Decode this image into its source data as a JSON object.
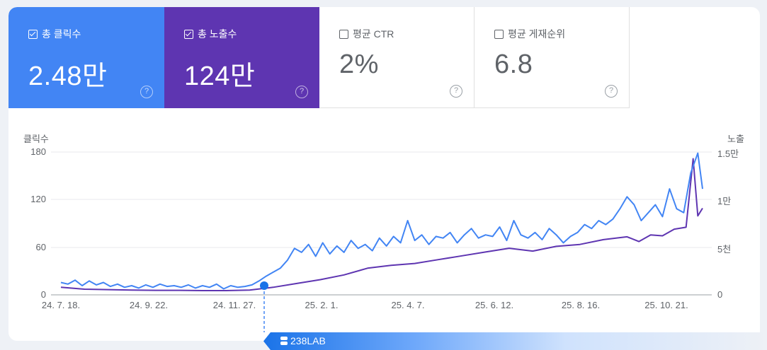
{
  "tiles": [
    {
      "label": "총 클릭수",
      "value": "2.48만",
      "checked": true,
      "help": "?"
    },
    {
      "label": "총 노출수",
      "value": "124만",
      "checked": true,
      "help": "?"
    },
    {
      "label": "평균 CTR",
      "value": "2%",
      "checked": false,
      "help": "?"
    },
    {
      "label": "평균 게재순위",
      "value": "6.8",
      "checked": false,
      "help": "?"
    }
  ],
  "colors": {
    "clicks": "#4285f4",
    "impressions": "#5e35b1",
    "background": "#eef1f6"
  },
  "badge": {
    "label": "238LAB"
  },
  "chart_data": {
    "type": "line",
    "title": "",
    "left_axis": {
      "label": "클릭수",
      "ticks": [
        "180",
        "120",
        "60",
        "0"
      ],
      "range": [
        0,
        180
      ]
    },
    "right_axis": {
      "label": "노출",
      "ticks": [
        "1.5만",
        "1만",
        "5천",
        "0"
      ],
      "range": [
        0,
        15000
      ]
    },
    "x_ticks": [
      "24. 7. 18.",
      "24. 9. 22.",
      "24. 11. 27.",
      "25. 2. 1.",
      "25. 4. 7.",
      "25. 6. 12.",
      "25. 8. 16.",
      "25. 10. 21."
    ],
    "grid": true,
    "legend": "tiles",
    "annotation": {
      "type": "marker",
      "position_label": "between 24. 11. 27. and 25. 2. 1.",
      "description": "blue dot with dashed vertical line"
    },
    "series": [
      {
        "name": "클릭수",
        "axis": "left",
        "color": "#4285f4",
        "approx_values_by_tick": [
          12,
          8,
          6,
          40,
          60,
          70,
          80,
          110
        ],
        "points": [
          [
            0,
            12
          ],
          [
            3,
            10
          ],
          [
            6,
            15
          ],
          [
            9,
            8
          ],
          [
            12,
            14
          ],
          [
            15,
            9
          ],
          [
            18,
            12
          ],
          [
            21,
            7
          ],
          [
            24,
            10
          ],
          [
            27,
            6
          ],
          [
            30,
            8
          ],
          [
            33,
            5
          ],
          [
            36,
            9
          ],
          [
            39,
            6
          ],
          [
            42,
            10
          ],
          [
            45,
            7
          ],
          [
            48,
            8
          ],
          [
            51,
            6
          ],
          [
            54,
            9
          ],
          [
            57,
            5
          ],
          [
            60,
            8
          ],
          [
            63,
            6
          ],
          [
            66,
            10
          ],
          [
            69,
            4
          ],
          [
            72,
            8
          ],
          [
            75,
            6
          ],
          [
            78,
            7
          ],
          [
            81,
            9
          ],
          [
            84,
            14
          ],
          [
            87,
            20
          ],
          [
            90,
            25
          ],
          [
            93,
            30
          ],
          [
            96,
            40
          ],
          [
            99,
            55
          ],
          [
            102,
            50
          ],
          [
            105,
            60
          ],
          [
            108,
            45
          ],
          [
            111,
            62
          ],
          [
            114,
            48
          ],
          [
            117,
            58
          ],
          [
            120,
            50
          ],
          [
            123,
            65
          ],
          [
            126,
            55
          ],
          [
            129,
            60
          ],
          [
            132,
            52
          ],
          [
            135,
            68
          ],
          [
            138,
            58
          ],
          [
            141,
            70
          ],
          [
            144,
            62
          ],
          [
            147,
            90
          ],
          [
            150,
            65
          ],
          [
            153,
            72
          ],
          [
            156,
            60
          ],
          [
            159,
            70
          ],
          [
            162,
            68
          ],
          [
            165,
            75
          ],
          [
            168,
            62
          ],
          [
            171,
            72
          ],
          [
            174,
            80
          ],
          [
            177,
            68
          ],
          [
            180,
            72
          ],
          [
            183,
            70
          ],
          [
            186,
            82
          ],
          [
            189,
            65
          ],
          [
            192,
            90
          ],
          [
            195,
            72
          ],
          [
            198,
            68
          ],
          [
            201,
            75
          ],
          [
            204,
            66
          ],
          [
            207,
            80
          ],
          [
            210,
            72
          ],
          [
            213,
            62
          ],
          [
            216,
            70
          ],
          [
            219,
            75
          ],
          [
            222,
            85
          ],
          [
            225,
            80
          ],
          [
            228,
            90
          ],
          [
            231,
            85
          ],
          [
            234,
            92
          ],
          [
            237,
            105
          ],
          [
            240,
            120
          ],
          [
            243,
            110
          ],
          [
            246,
            90
          ],
          [
            249,
            100
          ],
          [
            252,
            110
          ],
          [
            255,
            95
          ],
          [
            258,
            130
          ],
          [
            261,
            105
          ],
          [
            264,
            100
          ],
          [
            267,
            150
          ],
          [
            270,
            175
          ],
          [
            272,
            130
          ]
        ]
      },
      {
        "name": "노출",
        "axis": "right",
        "color": "#5e35b1",
        "approx_values_by_tick": [
          600,
          300,
          200,
          1100,
          2700,
          4400,
          5600,
          7500
        ],
        "points": [
          [
            0,
            500
          ],
          [
            10,
            300
          ],
          [
            20,
            250
          ],
          [
            30,
            200
          ],
          [
            40,
            180
          ],
          [
            50,
            180
          ],
          [
            60,
            150
          ],
          [
            70,
            150
          ],
          [
            80,
            200
          ],
          [
            90,
            500
          ],
          [
            100,
            900
          ],
          [
            110,
            1300
          ],
          [
            120,
            1800
          ],
          [
            130,
            2500
          ],
          [
            140,
            2800
          ],
          [
            150,
            3000
          ],
          [
            160,
            3400
          ],
          [
            170,
            3800
          ],
          [
            180,
            4200
          ],
          [
            190,
            4600
          ],
          [
            200,
            4300
          ],
          [
            210,
            4800
          ],
          [
            220,
            5000
          ],
          [
            230,
            5500
          ],
          [
            240,
            5800
          ],
          [
            245,
            5300
          ],
          [
            250,
            6000
          ],
          [
            255,
            5900
          ],
          [
            260,
            6600
          ],
          [
            265,
            6800
          ],
          [
            268,
            14000
          ],
          [
            270,
            8000
          ],
          [
            272,
            8800
          ]
        ]
      }
    ]
  }
}
